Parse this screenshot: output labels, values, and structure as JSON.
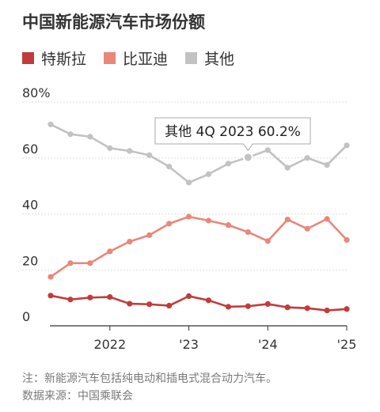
{
  "title": "中国新能源汽车市场份额",
  "colors": {
    "tesla": "#c23b3b",
    "byd": "#e9877a",
    "other": "#c2c2c2"
  },
  "chart_data": {
    "type": "line",
    "ylim": [
      0,
      80
    ],
    "yticks": [
      {
        "value": 80,
        "label": "80%"
      },
      {
        "value": 60,
        "label": "60"
      },
      {
        "value": 40,
        "label": "40"
      },
      {
        "value": 20,
        "label": "20"
      },
      {
        "value": 0,
        "label": "0"
      }
    ],
    "x": [
      "2Q21",
      "3Q21",
      "4Q21",
      "1Q22",
      "2Q22",
      "3Q22",
      "4Q22",
      "1Q23",
      "2Q23",
      "3Q23",
      "4Q23",
      "1Q24",
      "2Q24",
      "3Q24",
      "4Q24",
      "1Q25"
    ],
    "xticks": [
      {
        "index": 3,
        "label": "2022"
      },
      {
        "index": 7,
        "label": "'23"
      },
      {
        "index": 11,
        "label": "'24"
      },
      {
        "index": 15,
        "label": "'25"
      }
    ],
    "series": [
      {
        "name": "特斯拉",
        "color": "#c23b3b",
        "values": [
          10.8,
          9.4,
          10.1,
          10.3,
          7.9,
          7.7,
          7.2,
          10.6,
          9.1,
          6.8,
          7.0,
          7.8,
          6.6,
          6.3,
          5.5,
          6.0
        ]
      },
      {
        "name": "比亚迪",
        "color": "#e9877a",
        "values": [
          17.5,
          22.4,
          22.4,
          26.6,
          30.1,
          32.4,
          36.5,
          39.0,
          37.6,
          36.0,
          33.5,
          30.3,
          38.0,
          34.7,
          38.2,
          30.7
        ]
      },
      {
        "name": "其他",
        "color": "#c2c2c2",
        "values": [
          72.0,
          68.5,
          67.6,
          63.5,
          62.5,
          61.0,
          56.9,
          51.2,
          54.2,
          58.0,
          60.2,
          62.8,
          56.5,
          60.0,
          57.5,
          64.5
        ]
      }
    ],
    "annotation": {
      "text": "其他 4Q 2023 60.2%",
      "series": "其他",
      "index": 10,
      "value": 60.2
    },
    "grid": true,
    "legend": "top-left"
  },
  "notes": {
    "line1": "注：新能源汽车包括纯电动和插电式混合动力汽车。",
    "line2": "数据来源：中国乘联会"
  }
}
